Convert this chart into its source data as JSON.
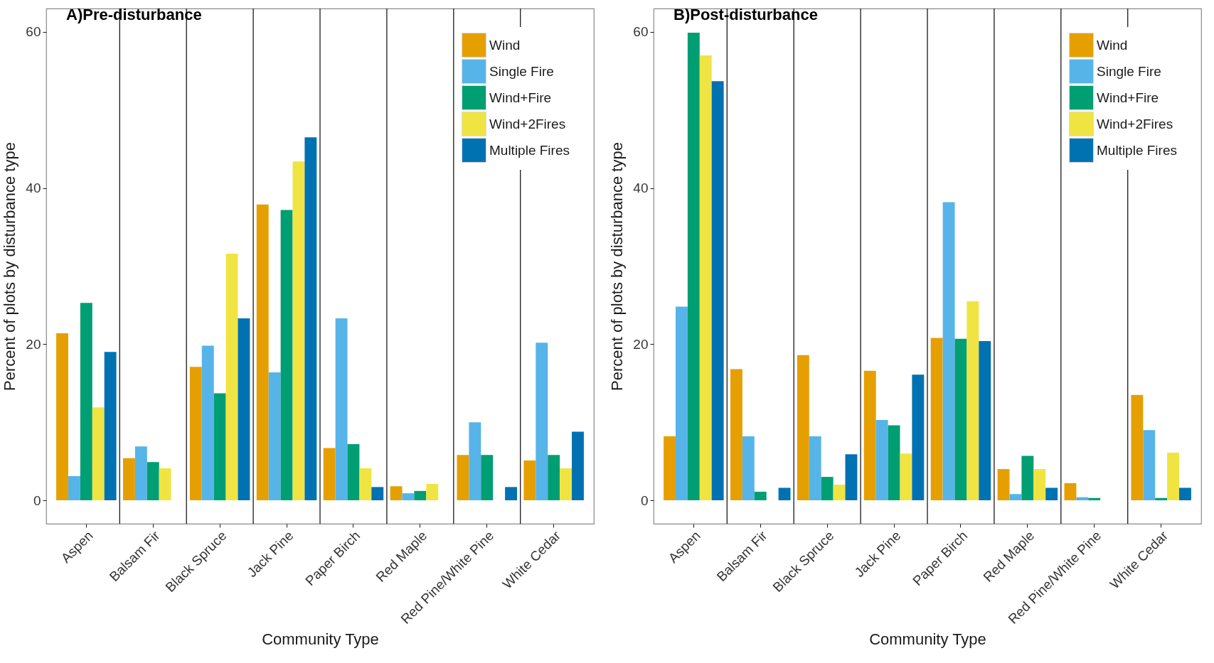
{
  "chart_data": [
    {
      "type": "bar",
      "title": "A)Pre-disturbance",
      "xlabel": "Community Type",
      "ylabel": "Percent of plots by disturbance type",
      "categories": [
        "Aspen",
        "Balsam Fir",
        "Black Spruce",
        "Jack Pine",
        "Paper Birch",
        "Red Maple",
        "Red Pine/White Pine",
        "White Cedar"
      ],
      "series": [
        {
          "name": "Wind",
          "color": "#e69f00",
          "values": [
            21.4,
            5.4,
            17.1,
            37.9,
            6.7,
            1.8,
            5.8,
            5.1
          ]
        },
        {
          "name": "Single Fire",
          "color": "#56b4e9",
          "values": [
            3.1,
            6.9,
            19.8,
            16.4,
            23.3,
            0.9,
            10.0,
            20.2
          ]
        },
        {
          "name": "Wind+Fire",
          "color": "#009e73",
          "values": [
            25.3,
            4.9,
            13.7,
            37.2,
            7.2,
            1.2,
            5.8,
            5.8
          ]
        },
        {
          "name": "Wind+2Fires",
          "color": "#f0e442",
          "values": [
            11.9,
            4.1,
            31.6,
            43.4,
            4.1,
            2.1,
            null,
            4.1
          ]
        },
        {
          "name": "Multiple Fires",
          "color": "#0072b2",
          "values": [
            19.0,
            null,
            23.3,
            46.5,
            1.7,
            null,
            1.7,
            8.8
          ]
        }
      ],
      "ylim": [
        -3,
        63
      ],
      "yticks": [
        0,
        20,
        40,
        60
      ],
      "grid": "x",
      "legend": "top right"
    },
    {
      "type": "bar",
      "title": "B)Post-disturbance",
      "xlabel": "Community Type",
      "ylabel": "Percent of plots by disturbance type",
      "categories": [
        "Aspen",
        "Balsam Fir",
        "Black Spruce",
        "Jack Pine",
        "Paper Birch",
        "Red Maple",
        "Red Pine/White Pine",
        "White Cedar"
      ],
      "series": [
        {
          "name": "Wind",
          "color": "#e69f00",
          "values": [
            8.2,
            16.8,
            18.6,
            16.6,
            20.8,
            4.0,
            2.2,
            13.5
          ]
        },
        {
          "name": "Single Fire",
          "color": "#56b4e9",
          "values": [
            24.8,
            8.2,
            8.2,
            10.3,
            38.2,
            0.8,
            0.4,
            9.0
          ]
        },
        {
          "name": "Wind+Fire",
          "color": "#009e73",
          "values": [
            59.9,
            1.1,
            3.0,
            9.6,
            20.7,
            5.7,
            0.3,
            0.3
          ]
        },
        {
          "name": "Wind+2Fires",
          "color": "#f0e442",
          "values": [
            57.0,
            null,
            2.0,
            6.0,
            25.5,
            4.0,
            null,
            6.1
          ]
        },
        {
          "name": "Multiple Fires",
          "color": "#0072b2",
          "values": [
            53.7,
            1.6,
            5.9,
            16.1,
            20.4,
            1.6,
            null,
            1.6
          ]
        }
      ],
      "ylim": [
        -3,
        63
      ],
      "yticks": [
        0,
        20,
        40,
        60
      ],
      "grid": "x",
      "legend": "top right"
    }
  ]
}
